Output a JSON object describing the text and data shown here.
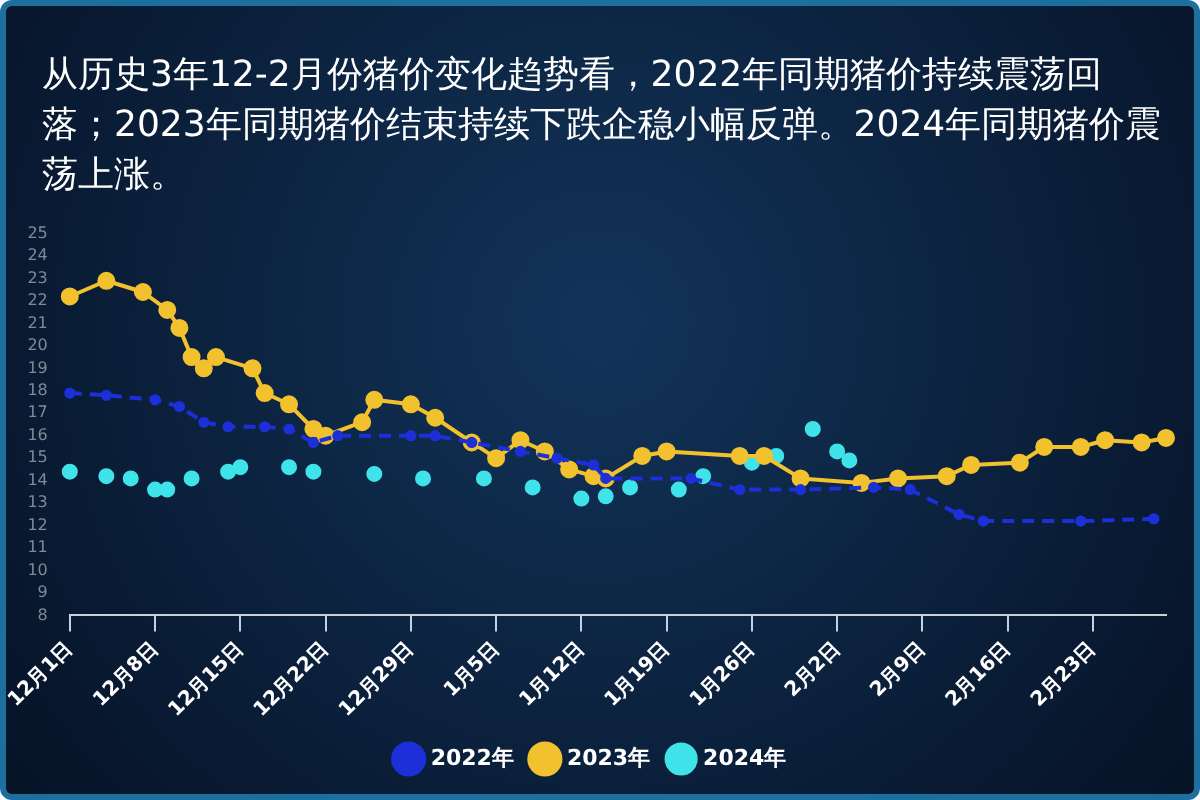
{
  "chart_data": {
    "type": "line",
    "title": "从历史3年12-2月份猪价变化趋势看，2022年同期猪价持续震荡回落；2023年同期猪价结束持续下跌企稳小幅反弹。2024年同期猪价震荡上涨。",
    "categories": [
      "12月1日",
      null,
      null,
      null,
      null,
      null,
      null,
      "12月8日",
      null,
      null,
      null,
      null,
      null,
      null,
      "12月15日",
      null,
      null,
      null,
      null,
      null,
      null,
      "12月22日",
      null,
      null,
      null,
      null,
      null,
      null,
      "12月29日",
      null,
      null,
      null,
      null,
      null,
      null,
      "1月5日",
      null,
      null,
      null,
      null,
      null,
      null,
      "1月12日",
      null,
      null,
      null,
      null,
      null,
      null,
      "1月19日",
      null,
      null,
      null,
      null,
      null,
      null,
      "1月26日",
      null,
      null,
      null,
      null,
      null,
      null,
      "2月2日",
      null,
      null,
      null,
      null,
      null,
      null,
      "2月9日",
      null,
      null,
      null,
      null,
      null,
      null,
      "2月16日",
      null,
      null,
      null,
      null,
      null,
      null,
      "2月23日",
      null,
      null,
      null,
      null,
      null,
      null
    ],
    "ylim": [
      8,
      25
    ],
    "yticks": [
      8,
      9,
      10,
      11,
      12,
      13,
      14,
      15,
      16,
      17,
      18,
      19,
      20,
      21,
      22,
      23,
      24,
      25
    ],
    "grid": false,
    "legend": "bottom",
    "marker": "circle",
    "series": [
      {
        "name": "2022年",
        "color": "#1c2fd8",
        "line_style": "dashed",
        "values": [
          17.9,
          null,
          null,
          17.8,
          null,
          null,
          null,
          17.6,
          null,
          17.3,
          null,
          16.6,
          null,
          16.4,
          null,
          null,
          16.4,
          null,
          16.3,
          null,
          15.7,
          null,
          16,
          null,
          null,
          null,
          null,
          null,
          16,
          null,
          16,
          null,
          null,
          15.7,
          null,
          null,
          null,
          15.3,
          null,
          null,
          15,
          null,
          null,
          14.7,
          14.1,
          null,
          null,
          null,
          null,
          null,
          null,
          14.1,
          null,
          null,
          null,
          13.6,
          null,
          null,
          null,
          null,
          13.6,
          null,
          null,
          null,
          null,
          null,
          13.7,
          null,
          null,
          13.6,
          null,
          null,
          null,
          12.5,
          null,
          12.2,
          null,
          null,
          null,
          null,
          null,
          null,
          null,
          12.2,
          null,
          null,
          null,
          null,
          null,
          12.3,
          null
        ]
      },
      {
        "name": "2023年",
        "color": "#f2c12e",
        "line_style": "solid",
        "values": [
          22.2,
          null,
          null,
          22.9,
          null,
          null,
          22.4,
          null,
          21.6,
          20.8,
          19.5,
          19,
          19.5,
          null,
          null,
          19,
          17.9,
          null,
          17.4,
          null,
          16.3,
          16,
          null,
          null,
          16.6,
          17.6,
          null,
          null,
          17.4,
          null,
          16.8,
          null,
          null,
          15.7,
          null,
          15,
          null,
          15.8,
          null,
          15.3,
          null,
          14.5,
          null,
          14.2,
          14.1,
          null,
          null,
          15.1,
          null,
          15.3,
          null,
          null,
          null,
          null,
          null,
          15.1,
          null,
          15.1,
          null,
          null,
          14.1,
          null,
          null,
          null,
          null,
          13.9,
          null,
          null,
          14.1,
          null,
          null,
          null,
          14.2,
          null,
          14.7,
          null,
          null,
          null,
          14.8,
          null,
          15.5,
          null,
          null,
          15.5,
          null,
          15.8,
          null,
          null,
          15.7,
          null,
          15.9
        ]
      },
      {
        "name": "2024年",
        "type": "scatter",
        "color": "#3fe3ea",
        "values": [
          14.4,
          null,
          null,
          14.2,
          null,
          14.1,
          null,
          13.6,
          13.6,
          null,
          14.1,
          null,
          null,
          14.4,
          14.6,
          null,
          null,
          null,
          14.6,
          null,
          14.4,
          null,
          null,
          null,
          null,
          14.3,
          null,
          null,
          null,
          14.1,
          null,
          null,
          null,
          null,
          14.1,
          null,
          null,
          null,
          13.7,
          null,
          null,
          null,
          13.2,
          null,
          13.3,
          null,
          13.7,
          null,
          null,
          null,
          13.6,
          null,
          14.2,
          null,
          null,
          null,
          14.8,
          null,
          15.1,
          null,
          null,
          16.3,
          null,
          15.3,
          14.9,
          null,
          null,
          null,
          null,
          null,
          null,
          null,
          null,
          null,
          null,
          null,
          null,
          null,
          null,
          null,
          null,
          null,
          null,
          null,
          null,
          null,
          null,
          null,
          null,
          null,
          null
        ]
      }
    ]
  }
}
